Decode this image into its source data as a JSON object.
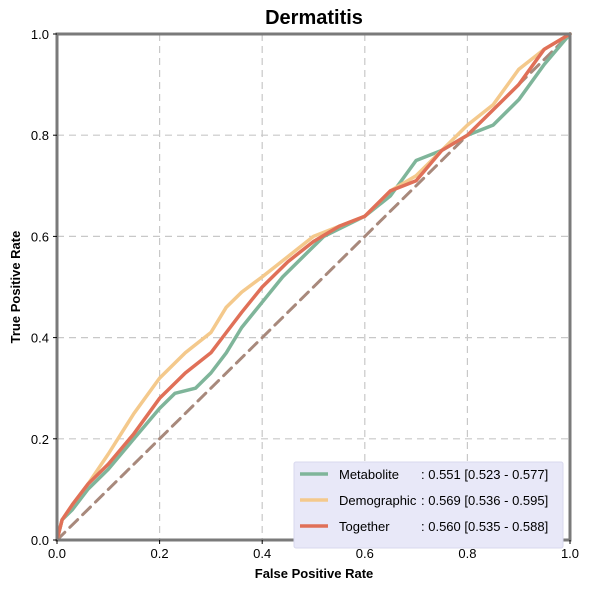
{
  "chart_data": {
    "type": "line",
    "title": "Dermatitis",
    "xlabel": "False Positive Rate",
    "ylabel": "True Positive Rate",
    "xlim": [
      0,
      1
    ],
    "ylim": [
      0,
      1
    ],
    "xticks": [
      "0.0",
      "0.2",
      "0.4",
      "0.6",
      "0.8",
      "1.0"
    ],
    "yticks": [
      "0.0",
      "0.2",
      "0.4",
      "0.6",
      "0.8",
      "1.0"
    ],
    "grid": true,
    "legend_position": "bottom-right",
    "series": [
      {
        "name": "Metabolite",
        "legend_value": ": 0.551 [0.523 - 0.577]",
        "color": "#7fb59a",
        "x": [
          0,
          0.01,
          0.03,
          0.06,
          0.1,
          0.15,
          0.2,
          0.23,
          0.27,
          0.3,
          0.33,
          0.36,
          0.4,
          0.44,
          0.48,
          0.52,
          0.56,
          0.6,
          0.65,
          0.7,
          0.75,
          0.8,
          0.85,
          0.9,
          0.95,
          1.0
        ],
        "y": [
          0,
          0.04,
          0.06,
          0.1,
          0.14,
          0.2,
          0.26,
          0.29,
          0.3,
          0.33,
          0.37,
          0.42,
          0.47,
          0.52,
          0.56,
          0.6,
          0.62,
          0.64,
          0.68,
          0.75,
          0.77,
          0.8,
          0.82,
          0.87,
          0.94,
          1.0
        ]
      },
      {
        "name": "Demographic",
        "legend_value": ": 0.569 [0.536 - 0.595]",
        "color": "#f4c98c",
        "x": [
          0,
          0.01,
          0.03,
          0.06,
          0.1,
          0.15,
          0.2,
          0.25,
          0.3,
          0.33,
          0.36,
          0.4,
          0.45,
          0.5,
          0.55,
          0.6,
          0.65,
          0.7,
          0.75,
          0.8,
          0.85,
          0.9,
          0.95,
          1.0
        ],
        "y": [
          0,
          0.04,
          0.07,
          0.11,
          0.17,
          0.25,
          0.32,
          0.37,
          0.41,
          0.46,
          0.49,
          0.52,
          0.56,
          0.6,
          0.62,
          0.64,
          0.69,
          0.72,
          0.77,
          0.82,
          0.86,
          0.93,
          0.97,
          1.0
        ]
      },
      {
        "name": "Together",
        "legend_value": ": 0.560 [0.535 - 0.588]",
        "color": "#e07058",
        "x": [
          0,
          0.01,
          0.03,
          0.06,
          0.1,
          0.15,
          0.2,
          0.25,
          0.3,
          0.33,
          0.36,
          0.4,
          0.45,
          0.5,
          0.55,
          0.6,
          0.65,
          0.7,
          0.75,
          0.8,
          0.85,
          0.9,
          0.95,
          1.0
        ],
        "y": [
          0,
          0.04,
          0.07,
          0.11,
          0.15,
          0.21,
          0.28,
          0.33,
          0.37,
          0.41,
          0.45,
          0.5,
          0.55,
          0.59,
          0.62,
          0.64,
          0.69,
          0.71,
          0.77,
          0.8,
          0.85,
          0.9,
          0.97,
          1.0
        ]
      },
      {
        "name": "",
        "legend_value": "",
        "color": "#a8897c",
        "dashed": true,
        "x": [
          0,
          1
        ],
        "y": [
          0,
          1
        ]
      }
    ]
  }
}
